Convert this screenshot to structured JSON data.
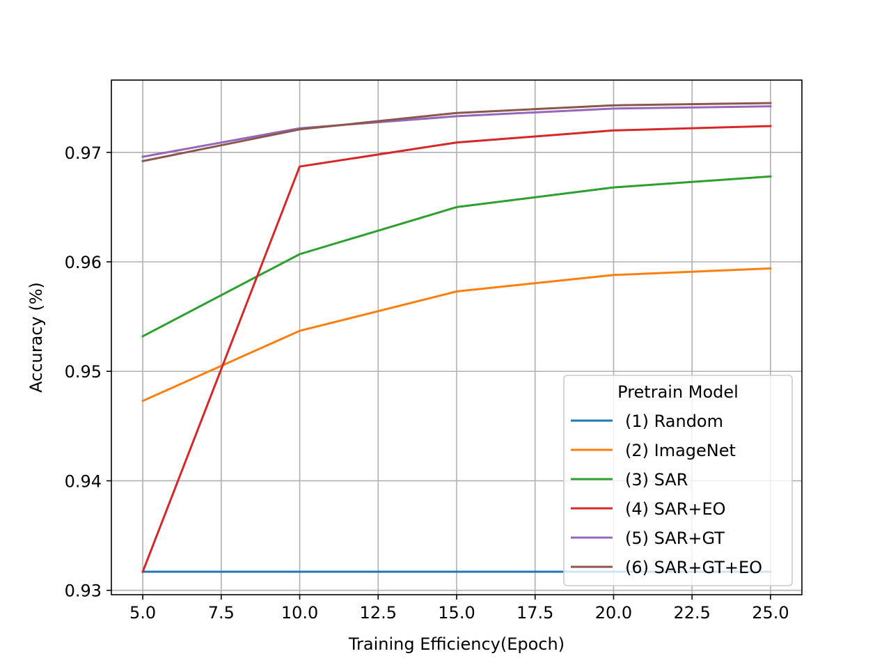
{
  "chart_data": {
    "type": "line",
    "title": "",
    "xlabel": "Training Efficiency(Epoch)",
    "ylabel": "Accuracy (%)",
    "xlim": [
      4.0,
      26.0
    ],
    "ylim": [
      0.9296,
      0.9766
    ],
    "x": [
      5,
      10,
      15,
      20,
      25
    ],
    "xticks": [
      5.0,
      7.5,
      10.0,
      12.5,
      15.0,
      17.5,
      20.0,
      22.5,
      25.0
    ],
    "xtick_labels": [
      "5.0",
      "7.5",
      "10.0",
      "12.5",
      "15.0",
      "17.5",
      "20.0",
      "22.5",
      "25.0"
    ],
    "yticks": [
      0.93,
      0.94,
      0.95,
      0.96,
      0.97
    ],
    "ytick_labels": [
      "0.93",
      "0.94",
      "0.95",
      "0.96",
      "0.97"
    ],
    "grid": true,
    "legend": {
      "title": "Pretrain Model",
      "placement": "lower-right"
    },
    "series": [
      {
        "name": "(1) Random",
        "color": "#1f77b4",
        "values": [
          0.9317,
          0.9317,
          0.9317,
          0.9317,
          0.9317
        ]
      },
      {
        "name": "(2) ImageNet",
        "color": "#ff7f0e",
        "values": [
          0.9473,
          0.9537,
          0.9573,
          0.9588,
          0.9594
        ]
      },
      {
        "name": "(3) SAR",
        "color": "#2ca02c",
        "values": [
          0.9532,
          0.9607,
          0.965,
          0.9668,
          0.9678
        ]
      },
      {
        "name": "(4) SAR+EO",
        "color": "#d62728",
        "values": [
          0.9317,
          0.9687,
          0.9709,
          0.972,
          0.9724
        ]
      },
      {
        "name": "(5) SAR+GT",
        "color": "#9467bd",
        "values": [
          0.9696,
          0.9722,
          0.9733,
          0.974,
          0.9742
        ]
      },
      {
        "name": "(6) SAR+GT+EO",
        "color": "#8c564b",
        "values": [
          0.9692,
          0.9721,
          0.9736,
          0.9743,
          0.9745
        ]
      }
    ]
  }
}
